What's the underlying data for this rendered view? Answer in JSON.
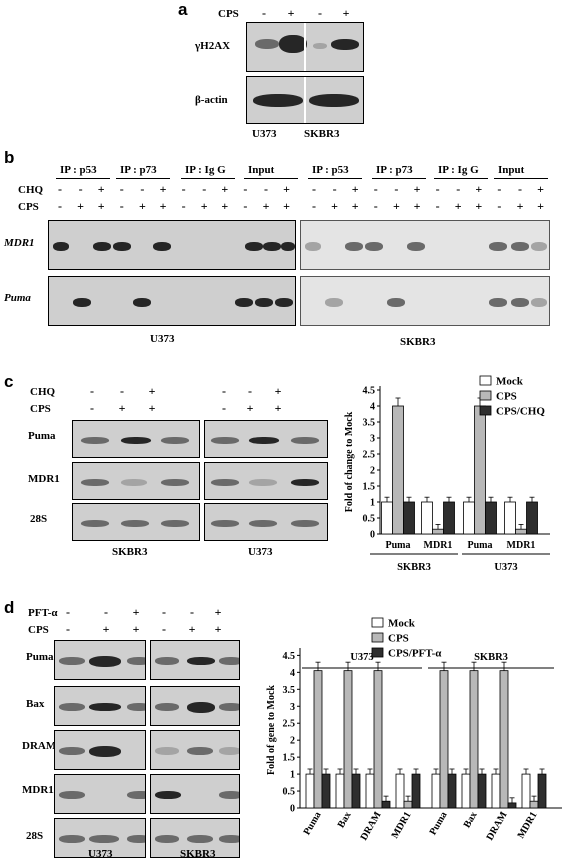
{
  "panel_a": {
    "label": "a",
    "row_header": "CPS",
    "signs": [
      "-",
      "+",
      "-",
      "+"
    ],
    "blot_labels": [
      "γH2AX",
      "β-actin"
    ],
    "cell_lines": [
      "U373",
      "SKBR3"
    ]
  },
  "panel_b": {
    "label": "b",
    "ip_groups_left": [
      "IP : p53",
      "IP : p73",
      "IP : Ig G",
      "Input"
    ],
    "ip_groups_right": [
      "IP : p53",
      "IP : p73",
      "IP : Ig G",
      "Input"
    ],
    "row_chq": "CHQ",
    "row_cps": "CPS",
    "chq_signs": [
      "-",
      "-",
      "+",
      "-",
      "-",
      "+",
      "-",
      "-",
      "+",
      "-",
      "-",
      "+",
      "-",
      "-",
      "+",
      "-",
      "-",
      "+",
      "-",
      "-",
      "+",
      "-",
      "-",
      "+"
    ],
    "cps_signs": [
      "-",
      "+",
      "+",
      "-",
      "+",
      "+",
      "-",
      "+",
      "+",
      "-",
      "+",
      "+",
      "-",
      "+",
      "+",
      "-",
      "+",
      "+",
      "-",
      "+",
      "+",
      "-",
      "+",
      "+"
    ],
    "genes": [
      "MDR1",
      "Puma"
    ],
    "cell_lines": [
      "U373",
      "SKBR3"
    ]
  },
  "panel_c": {
    "label": "c",
    "row_chq": "CHQ",
    "row_cps": "CPS",
    "chq_signs": [
      "-",
      "-",
      "+",
      "-",
      "-",
      "+"
    ],
    "cps_signs": [
      "-",
      "+",
      "+",
      "-",
      "+",
      "+"
    ],
    "genes": [
      "Puma",
      "MDR1",
      "28S"
    ],
    "cell_lines": [
      "SKBR3",
      "U373"
    ]
  },
  "panel_d": {
    "label": "d",
    "row_pft": "PFT-α",
    "row_cps": "CPS",
    "pft_signs": [
      "-",
      "-",
      "+",
      "-",
      "-",
      "+"
    ],
    "cps_signs": [
      "-",
      "+",
      "+",
      "-",
      "+",
      "+"
    ],
    "genes": [
      "Puma",
      "Bax",
      "DRAM",
      "MDR1",
      "28S"
    ],
    "cell_lines": [
      "U373",
      "SKBR3"
    ]
  },
  "chart_data": [
    {
      "type": "bar",
      "ylabel": "Fold of change to Mock",
      "ylim": [
        0,
        4.5
      ],
      "yticks": [
        "0",
        "0.5",
        "1",
        "1.5",
        "2",
        "2.5",
        "3",
        "3.5",
        "4",
        "4.5"
      ],
      "categories": [
        "Puma",
        "MDR1",
        "Puma",
        "MDR1"
      ],
      "groups": [
        "SKBR3",
        "U373"
      ],
      "series": [
        {
          "name": "Mock",
          "values": [
            1,
            1,
            1,
            1
          ],
          "color": "#ffffff"
        },
        {
          "name": "CPS",
          "values": [
            4.0,
            0.15,
            4.0,
            0.15
          ],
          "color": "#b8b8b8"
        },
        {
          "name": "CPS/CHQ",
          "values": [
            1.0,
            1.0,
            1.0,
            1.0
          ],
          "color": "#2e2e2e"
        }
      ],
      "legend_position": "top-right"
    },
    {
      "type": "bar",
      "ylabel": "Fold of gene to Mock",
      "ylim": [
        0,
        4.6
      ],
      "yticks": [
        "0",
        "0.5",
        "1",
        "1.5",
        "2",
        "2.5",
        "3",
        "3.5",
        "4",
        "4.5"
      ],
      "categories": [
        "Puma",
        "Bax",
        "DRAM",
        "MDR1",
        "Puma",
        "Bax",
        "DRAM",
        "MDR1"
      ],
      "groups": [
        "U373",
        "SKBR3"
      ],
      "series": [
        {
          "name": "Mock",
          "values": [
            1,
            1,
            1,
            1,
            1,
            1,
            1,
            1
          ],
          "color": "#ffffff"
        },
        {
          "name": "CPS",
          "values": [
            4.05,
            4.05,
            4.05,
            0.2,
            4.05,
            4.05,
            4.05,
            0.2
          ],
          "color": "#b8b8b8"
        },
        {
          "name": "CPS/PFT-α",
          "values": [
            1.0,
            1.0,
            0.2,
            1.0,
            1.0,
            1.0,
            0.15,
            1.0
          ],
          "color": "#2e2e2e"
        }
      ],
      "legend_position": "top-right"
    }
  ]
}
